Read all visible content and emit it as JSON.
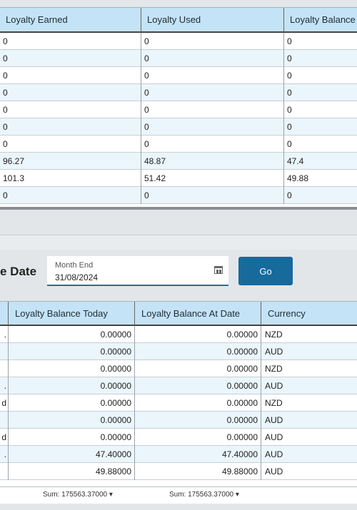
{
  "top_grid": {
    "columns": [
      "Loyalty Earned",
      "Loyalty Used",
      "Loyalty Balance"
    ],
    "rows": [
      [
        "0",
        "0",
        "0"
      ],
      [
        "0",
        "0",
        "0"
      ],
      [
        "0",
        "0",
        "0"
      ],
      [
        "0",
        "0",
        "0"
      ],
      [
        "0",
        "0",
        "0"
      ],
      [
        "0",
        "0",
        "0"
      ],
      [
        "0",
        "0",
        "0"
      ],
      [
        "96.27",
        "48.87",
        "47.4"
      ],
      [
        "101.3",
        "51.42",
        "49.88"
      ],
      [
        "0",
        "0",
        "0"
      ]
    ]
  },
  "filter": {
    "label": "e Date",
    "field_label": "Month End",
    "field_value": "31/08/2024",
    "go_label": "Go"
  },
  "bottom_grid": {
    "columns": [
      "Loyalty Balance Today",
      "Loyalty Balance At Date",
      "Currency"
    ],
    "rows": [
      {
        "lead": ".",
        "today": "0.00000",
        "at_date": "0.00000",
        "currency": "NZD"
      },
      {
        "lead": "",
        "today": "0.00000",
        "at_date": "0.00000",
        "currency": "AUD"
      },
      {
        "lead": "",
        "today": "0.00000",
        "at_date": "0.00000",
        "currency": "NZD"
      },
      {
        "lead": ".",
        "today": "0.00000",
        "at_date": "0.00000",
        "currency": "AUD"
      },
      {
        "lead": "d",
        "today": "0.00000",
        "at_date": "0.00000",
        "currency": "NZD"
      },
      {
        "lead": "",
        "today": "0.00000",
        "at_date": "0.00000",
        "currency": "AUD"
      },
      {
        "lead": "d",
        "today": "0.00000",
        "at_date": "0.00000",
        "currency": "AUD"
      },
      {
        "lead": ".",
        "today": "47.40000",
        "at_date": "47.40000",
        "currency": "AUD"
      },
      {
        "lead": "",
        "today": "49.88000",
        "at_date": "49.88000",
        "currency": "AUD"
      }
    ]
  },
  "footer": {
    "sum_today": "Sum: 175563.37000 ▾",
    "sum_at_date": "Sum: 175563.37000 ▾"
  }
}
